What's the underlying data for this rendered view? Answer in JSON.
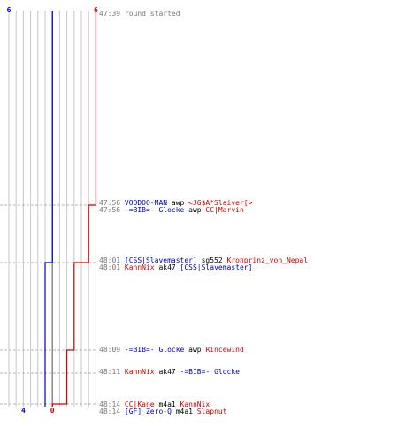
{
  "chart_data": {
    "type": "line",
    "title": "",
    "colors": {
      "blue_team": "#0000bb",
      "red_team": "#cc0000",
      "time_text": "#777777",
      "weapon_text": "#000000",
      "grid": "#c8c8c8",
      "center_line": "#808080",
      "guide": "#b4b4b4"
    },
    "start": {
      "time": "47:39",
      "text": "round started"
    },
    "series": [
      {
        "name": "",
        "team": "blue",
        "start_count": "6",
        "end_count": "4",
        "steps": [
          6,
          5,
          5,
          5,
          4,
          4
        ]
      },
      {
        "name": "",
        "team": "red",
        "start_count": "6",
        "end_count": "0",
        "steps": [
          6,
          5,
          4,
          3,
          2,
          1,
          0
        ]
      }
    ],
    "events": [
      {
        "time": "47:56",
        "killer": "VOODOO-MAN",
        "killer_team": "blue",
        "weapon": "awp",
        "victim": "<JG$A*Slaiver[>",
        "victim_team": "red"
      },
      {
        "time": "47:56",
        "killer": "-=BIB=- Glocke",
        "killer_team": "blue",
        "weapon": "awp",
        "victim": "CC|Marvin",
        "victim_team": "red"
      },
      {
        "time": "48:01",
        "killer": "[CSS|Slavemaster]",
        "killer_team": "blue",
        "weapon": "sg552",
        "victim": "Kronprinz_von_Nepal",
        "victim_team": "red"
      },
      {
        "time": "48:01",
        "killer": "KannNix",
        "killer_team": "red",
        "weapon": "ak47",
        "victim": "[CSS|Slavemaster]",
        "victim_team": "blue"
      },
      {
        "time": "48:09",
        "killer": "-=BIB=- Glocke",
        "killer_team": "blue",
        "weapon": "awp",
        "victim": "Rincewind",
        "victim_team": "red"
      },
      {
        "time": "48:11",
        "killer": "KannNix",
        "killer_team": "red",
        "weapon": "ak47",
        "victim": "-=BIB=- Glocke",
        "victim_team": "blue"
      },
      {
        "time": "48:14",
        "killer": "CC|Kane",
        "killer_team": "red",
        "weapon": "m4a1",
        "victim": "KannNix",
        "victim_team": "red"
      },
      {
        "time": "48:14",
        "killer": "[GF] Zero-Q",
        "killer_team": "blue",
        "weapon": "m4a1",
        "victim": "Slapnut",
        "victim_team": "red"
      }
    ]
  }
}
